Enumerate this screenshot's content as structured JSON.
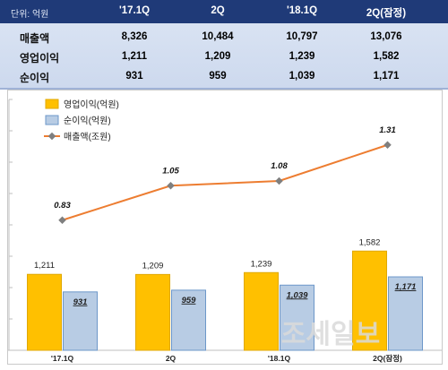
{
  "table": {
    "unit_label": "단위: 억원",
    "columns": [
      "'17.1Q",
      "2Q",
      "'18.1Q",
      "2Q(잠정)"
    ],
    "rows": [
      {
        "label": "매출액",
        "values": [
          "8,326",
          "10,484",
          "10,797",
          "13,076"
        ]
      },
      {
        "label": "영업이익",
        "values": [
          "1,211",
          "1,209",
          "1,239",
          "1,582"
        ]
      },
      {
        "label": "순이익",
        "values": [
          "931",
          "959",
          "1,039",
          "1,171"
        ]
      }
    ]
  },
  "chart_data": {
    "type": "bar",
    "categories": [
      "'17.1Q",
      "2Q",
      "'18.1Q",
      "2Q(잠정)"
    ],
    "series": [
      {
        "name": "영업이익(억원)",
        "type": "bar",
        "values": [
          1211,
          1209,
          1239,
          1582
        ],
        "labels": [
          "1,211",
          "1,209",
          "1,239",
          "1,582"
        ],
        "color": "#ffc000"
      },
      {
        "name": "순이익(억원)",
        "type": "bar",
        "values": [
          931,
          959,
          1039,
          1171
        ],
        "labels": [
          "931",
          "959",
          "1,039",
          "1,171"
        ],
        "color": "#b8cce4"
      },
      {
        "name": "매출액(조원)",
        "type": "line",
        "values": [
          0.83,
          1.05,
          1.08,
          1.31
        ],
        "labels": [
          "0.83",
          "1.05",
          "1.08",
          "1.31"
        ],
        "color": "#ed7d31"
      }
    ],
    "bar_ylim": [
      0,
      4000
    ],
    "line_ylim": [
      0,
      1.6
    ],
    "legend_position": "top-left",
    "grid": false
  },
  "watermark": "조세일보"
}
